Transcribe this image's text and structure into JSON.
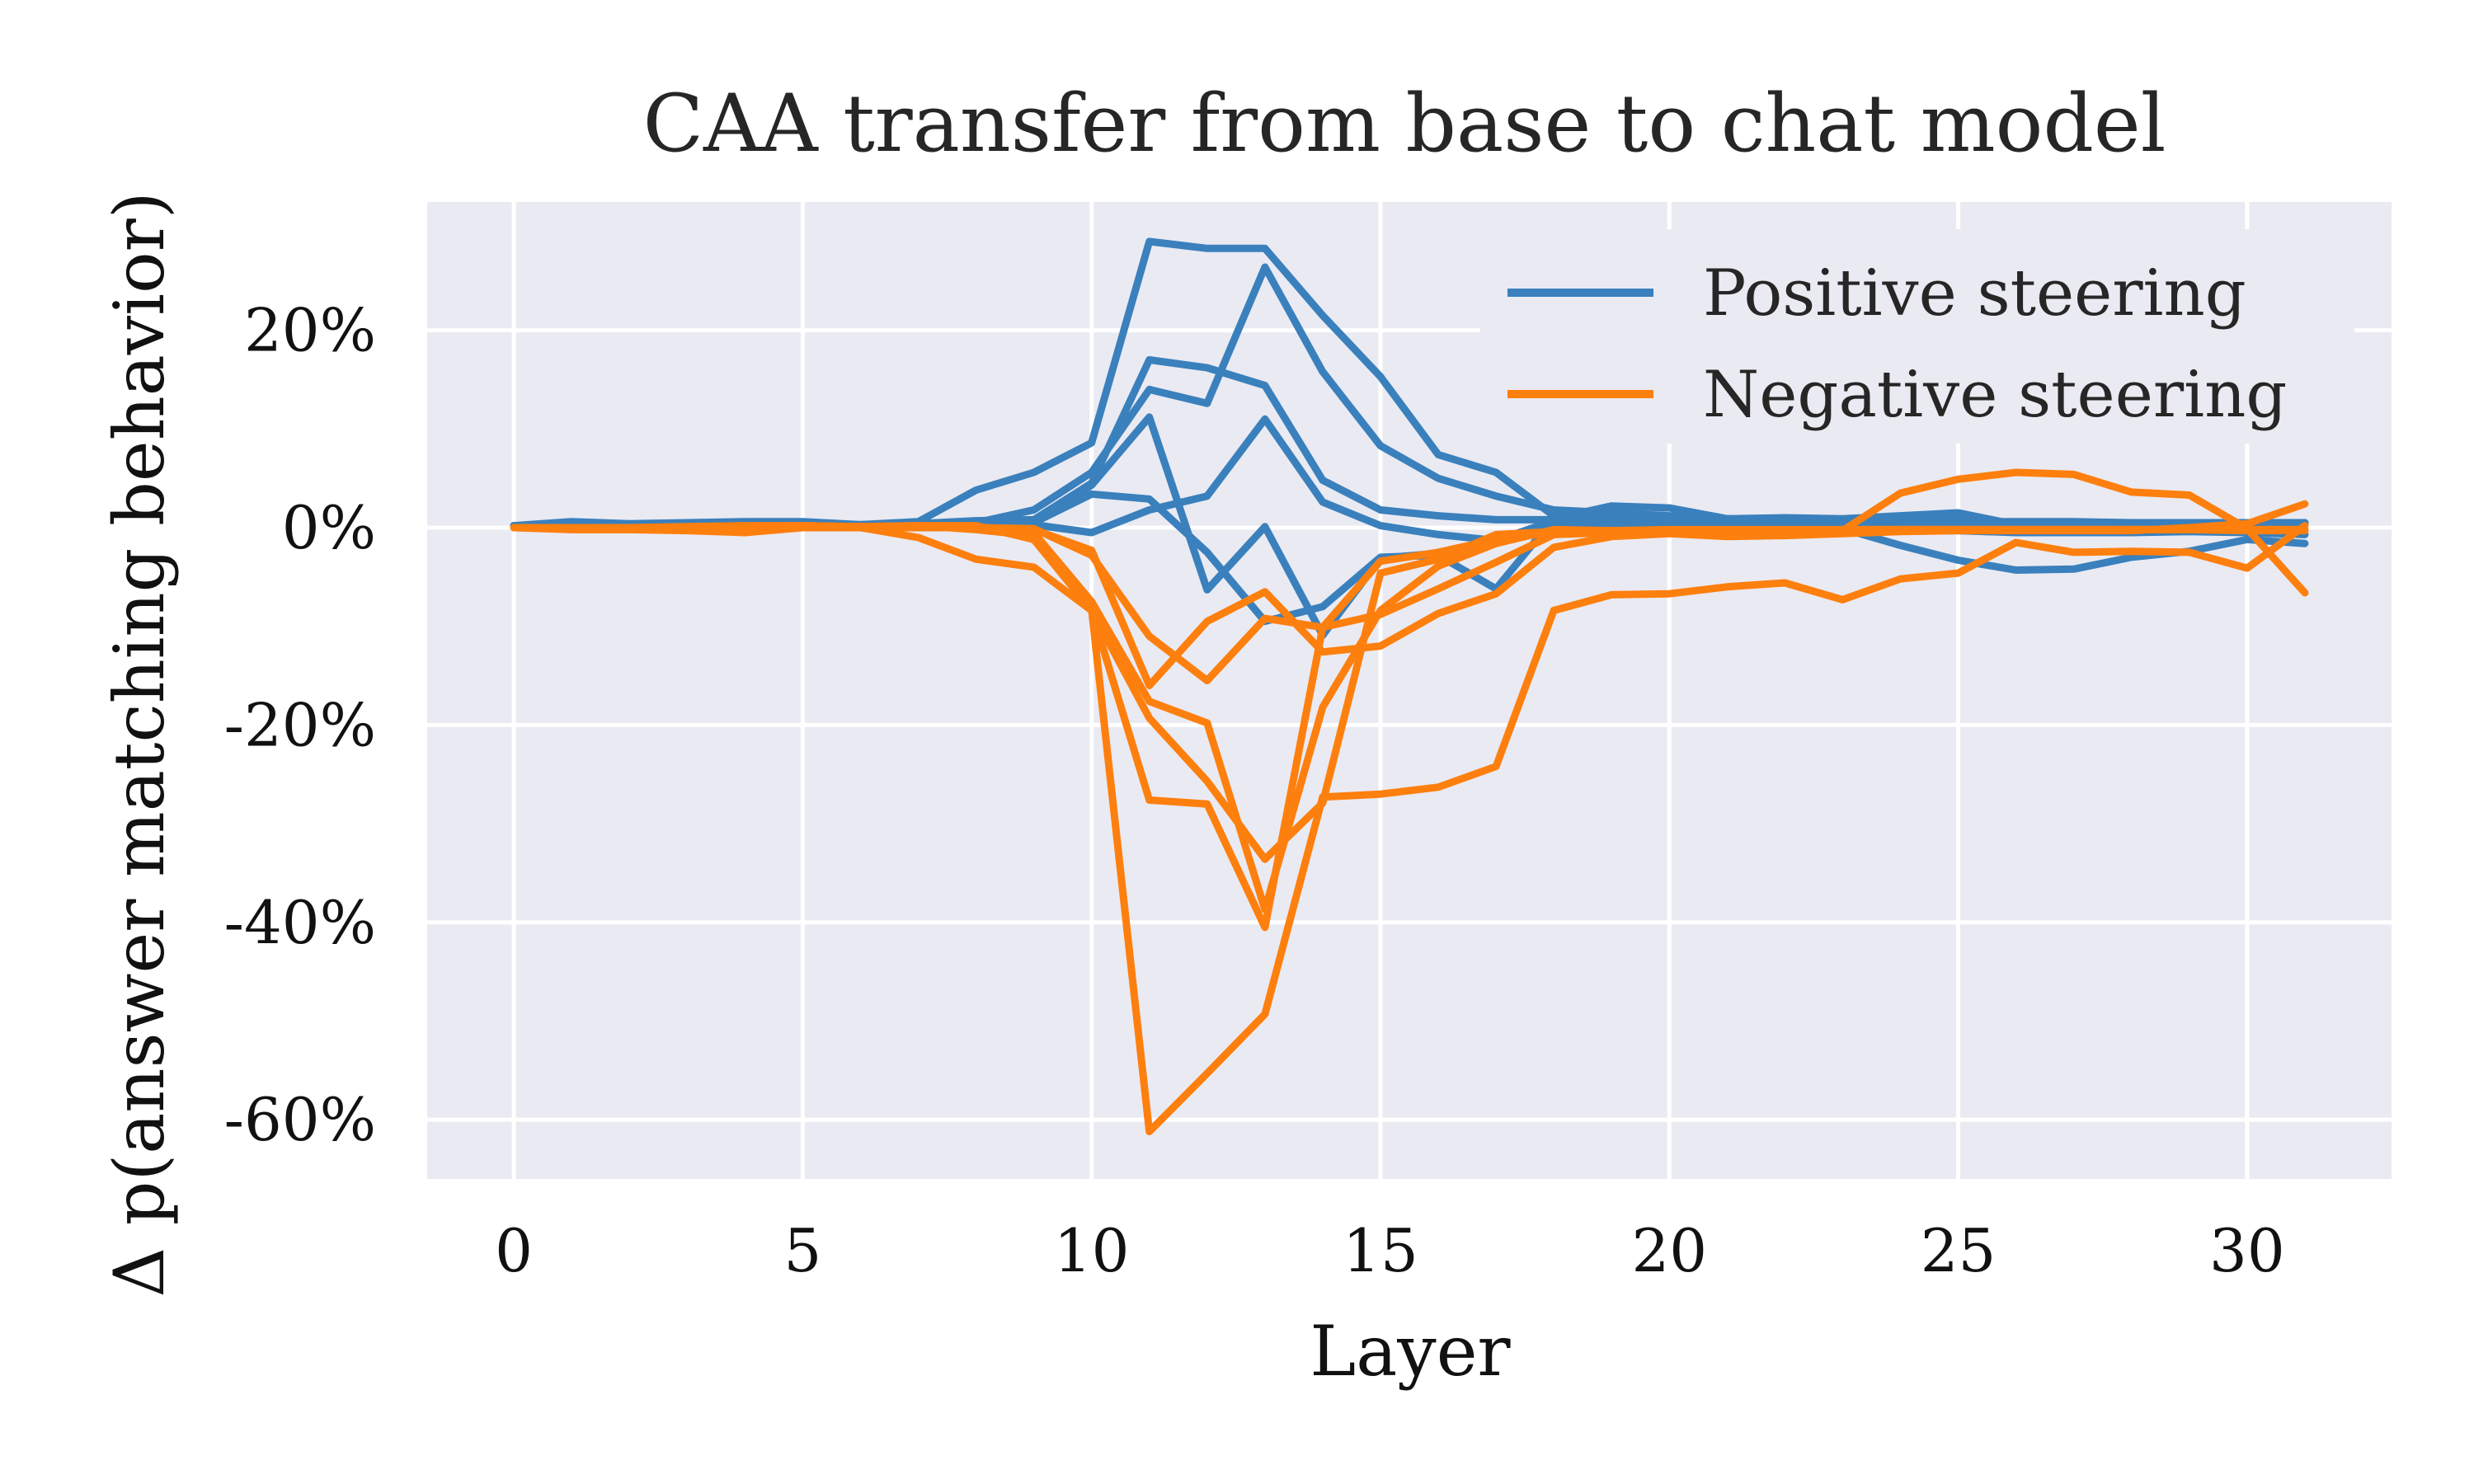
{
  "chart_data": {
    "type": "line",
    "title": "CAA transfer from base to chat model",
    "xlabel": "Layer",
    "ylabel": "Δ p(answer matching behavior)",
    "xlim": [
      -1.5,
      32.5
    ],
    "ylim": [
      -66,
      33
    ],
    "xticks": [
      0,
      5,
      10,
      15,
      20,
      25,
      30
    ],
    "yticks": [
      20,
      0,
      -20,
      -40,
      -60
    ],
    "ytick_labels": [
      "20%",
      "0%",
      "-20%",
      "-40%",
      "-60%"
    ],
    "grid": true,
    "legend_position": "top-right",
    "legend": [
      {
        "label": "Positive steering",
        "color": "#3a80bd"
      },
      {
        "label": "Negative steering",
        "color": "#fd7f0e"
      }
    ],
    "colors": {
      "positive": "#3a80bd",
      "negative": "#fd7f0e",
      "plot_bg": "#eaeaf2",
      "grid": "#ffffff"
    },
    "x": [
      0,
      1,
      2,
      3,
      4,
      5,
      6,
      7,
      8,
      9,
      10,
      11,
      12,
      13,
      14,
      15,
      16,
      17,
      18,
      19,
      20,
      21,
      22,
      23,
      24,
      25,
      26,
      27,
      28,
      29,
      30,
      31
    ],
    "series": [
      {
        "group": "positive",
        "values": [
          0.2,
          0.6,
          0.4,
          0.5,
          0.6,
          0.6,
          0.3,
          0.6,
          3.8,
          5.6,
          8.6,
          29.0,
          28.3,
          28.3,
          21.5,
          15.3,
          7.4,
          5.6,
          1.2,
          1.0,
          0.6,
          0.6,
          0.5,
          0.5,
          0.5,
          0.5,
          0.5,
          0.5,
          0.5,
          0.5,
          0.5,
          0.5
        ]
      },
      {
        "group": "positive",
        "values": [
          0.2,
          0.2,
          0.2,
          0.3,
          0.3,
          0.3,
          0.3,
          0.4,
          0.7,
          0.8,
          4.5,
          17.0,
          16.2,
          14.4,
          4.8,
          1.8,
          1.2,
          0.8,
          0.8,
          0.6,
          0.5,
          0.5,
          0.5,
          0.5,
          0.6,
          0.6,
          0.6,
          0.6,
          0.5,
          0.5,
          0.5,
          0.5
        ]
      },
      {
        "group": "positive",
        "values": [
          0.2,
          0.2,
          0.2,
          0.2,
          0.2,
          0.2,
          0.2,
          0.3,
          0.5,
          1.8,
          5.6,
          14.0,
          12.6,
          26.4,
          15.8,
          8.3,
          5.0,
          3.2,
          1.8,
          1.5,
          1.2,
          0.9,
          0.8,
          0.8,
          0.8,
          0.8,
          0.5,
          0.5,
          0.5,
          0.5,
          0.5,
          0.5
        ]
      },
      {
        "group": "positive",
        "values": [
          0.2,
          0.2,
          0.2,
          0.2,
          0.2,
          0.2,
          0.2,
          0.2,
          0.2,
          0.3,
          -0.5,
          1.8,
          3.2,
          11.0,
          2.6,
          0.2,
          -0.7,
          -1.3,
          0.7,
          0.7,
          0.6,
          0.6,
          0.5,
          0.5,
          -0.3,
          -0.3,
          -0.5,
          -0.5,
          -0.5,
          -0.4,
          -0.5,
          -0.7
        ]
      },
      {
        "group": "positive",
        "values": [
          0.2,
          0.2,
          0.2,
          0.2,
          0.2,
          0.2,
          0.2,
          0.2,
          0.3,
          0.5,
          3.4,
          2.9,
          -2.5,
          -9.5,
          -8.0,
          -3.0,
          -2.8,
          -6.2,
          0.9,
          2.2,
          2.0,
          0.9,
          1.0,
          0.9,
          1.2,
          1.5,
          0.3,
          0.3,
          0.3,
          0.2,
          0.2,
          0.2
        ]
      },
      {
        "group": "positive",
        "values": [
          0.2,
          0.2,
          0.2,
          0.2,
          0.2,
          0.2,
          0.2,
          0.2,
          0.2,
          0.5,
          4.3,
          11.2,
          -6.3,
          0.1,
          -10.9,
          -3.1,
          -2.6,
          -1.6,
          0.3,
          0.3,
          0.2,
          0.1,
          -0.2,
          -0.1,
          -1.8,
          -3.3,
          -4.3,
          -4.2,
          -3.0,
          -2.4,
          -1.2,
          -1.6
        ]
      },
      {
        "group": "negative",
        "values": [
          0.0,
          -0.2,
          -0.2,
          -0.3,
          -0.5,
          0.0,
          0.0,
          -1.0,
          -3.2,
          -4.0,
          -8.4,
          -27.6,
          -28.0,
          -40.5,
          -10.1,
          -8.8,
          -6.2,
          -3.5,
          -0.7,
          -0.5,
          -0.5,
          -0.4,
          -0.4,
          -0.3,
          3.5,
          4.9,
          5.6,
          5.4,
          3.6,
          3.3,
          -0.1,
          -6.6
        ]
      },
      {
        "group": "negative",
        "values": [
          0.0,
          0.0,
          0.0,
          0.1,
          0.2,
          0.2,
          0.1,
          0.2,
          -0.2,
          -0.8,
          -8.3,
          -61.2,
          -55.3,
          -49.3,
          -27.3,
          -27.0,
          -26.3,
          -24.2,
          -8.4,
          -6.8,
          -6.7,
          -6.0,
          -5.6,
          -7.3,
          -5.2,
          -4.6,
          -1.5,
          -2.5,
          -2.4,
          -2.5,
          -4.1,
          0.2
        ]
      },
      {
        "group": "negative",
        "values": [
          0.0,
          0.0,
          0.0,
          0.0,
          0.1,
          0.2,
          0.1,
          0.2,
          0.2,
          -1.2,
          -8.4,
          -19.3,
          -25.7,
          -33.6,
          -27.9,
          -4.6,
          -3.2,
          -0.7,
          -0.4,
          -0.4,
          -0.5,
          -0.7,
          -0.5,
          -0.3,
          -0.2,
          -0.2,
          -0.2,
          -0.2,
          -0.2,
          -0.2,
          -0.3,
          -0.3
        ]
      },
      {
        "group": "negative",
        "values": [
          0.0,
          0.0,
          0.0,
          0.0,
          0.1,
          0.1,
          0.1,
          0.1,
          0.1,
          -0.5,
          -7.5,
          -17.6,
          -19.8,
          -38.7,
          -18.2,
          -8.4,
          -3.9,
          -1.6,
          -0.2,
          -0.3,
          -0.3,
          -0.4,
          -0.3,
          -0.2,
          -0.2,
          -0.2,
          -0.2,
          -0.2,
          -0.2,
          -0.2,
          -0.2,
          -0.2
        ]
      },
      {
        "group": "negative",
        "values": [
          0.0,
          0.0,
          0.0,
          0.0,
          0.1,
          0.1,
          0.0,
          0.0,
          0.0,
          -0.2,
          -2.3,
          -16.0,
          -9.5,
          -6.5,
          -12.6,
          -12.0,
          -8.7,
          -6.7,
          -2.0,
          -0.9,
          -0.6,
          -0.9,
          -0.8,
          -0.6,
          -0.4,
          -0.3,
          -0.3,
          -0.3,
          -0.3,
          0.0,
          0.4,
          2.4
        ]
      },
      {
        "group": "negative",
        "values": [
          0.0,
          0.0,
          0.0,
          0.0,
          0.1,
          0.1,
          0.0,
          0.0,
          0.0,
          -0.1,
          -2.8,
          -11.0,
          -15.5,
          -9.2,
          -10.1,
          -3.4,
          -2.5,
          -1.2,
          -0.5,
          -0.3,
          -0.2,
          -0.2,
          -0.2,
          -0.2,
          -0.2,
          -0.2,
          -0.2,
          -0.2,
          -0.2,
          -0.2,
          -0.2,
          -0.2
        ]
      }
    ]
  }
}
